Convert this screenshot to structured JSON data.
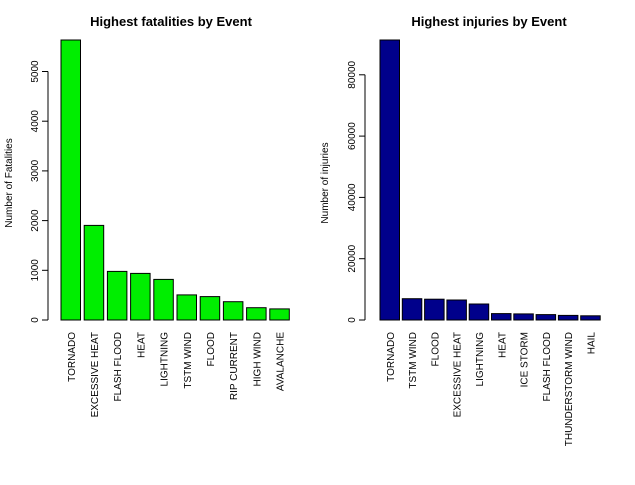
{
  "chart_data": [
    {
      "type": "bar",
      "title": "Highest fatalities by Event",
      "xlabel": "",
      "ylabel": "Number of Fatalities",
      "ylim": [
        0,
        5633
      ],
      "yticks": [
        0,
        1000,
        2000,
        3000,
        4000,
        5000
      ],
      "bar_color": "#00ee00",
      "categories": [
        "TORNADO",
        "EXCESSIVE HEAT",
        "FLASH FLOOD",
        "HEAT",
        "LIGHTNING",
        "TSTM WIND",
        "FLOOD",
        "RIP CURRENT",
        "HIGH WIND",
        "AVALANCHE"
      ],
      "values": [
        5633,
        1903,
        978,
        937,
        816,
        504,
        470,
        368,
        248,
        224
      ],
      "grid": false
    },
    {
      "type": "bar",
      "title": "Highest injuries by Event",
      "xlabel": "",
      "ylabel": "Number of injuries",
      "ylim": [
        0,
        91346
      ],
      "yticks": [
        0,
        20000,
        40000,
        60000,
        80000
      ],
      "bar_color": "#00008b",
      "categories": [
        "TORNADO",
        "TSTM WIND",
        "FLOOD",
        "EXCESSIVE HEAT",
        "LIGHTNING",
        "HEAT",
        "ICE STORM",
        "FLASH FLOOD",
        "THUNDERSTORM WIND",
        "HAIL"
      ],
      "values": [
        91346,
        6957,
        6789,
        6525,
        5230,
        2100,
        1975,
        1777,
        1488,
        1361
      ],
      "grid": false
    }
  ]
}
